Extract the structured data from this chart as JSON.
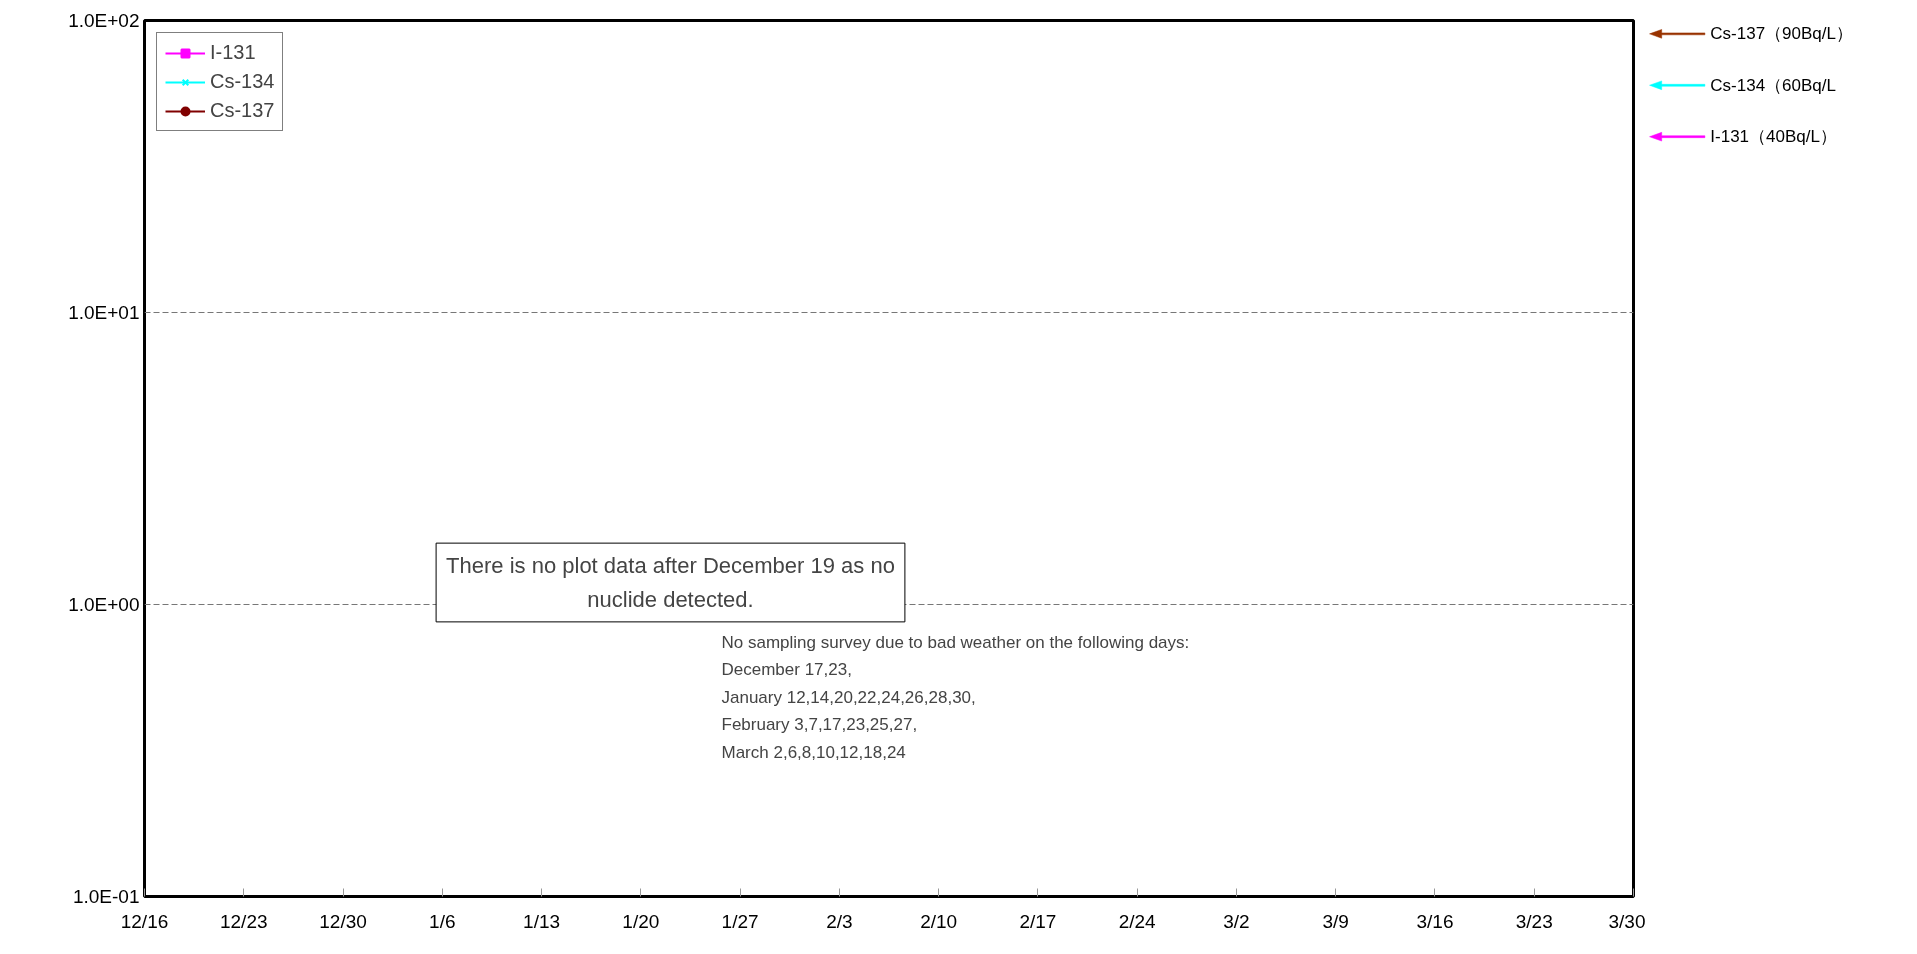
{
  "chart_data": {
    "type": "line",
    "series": [
      {
        "name": "I-131",
        "color": "#ff00ff",
        "marker": "square",
        "values": [
          null,
          null,
          null,
          null,
          null,
          null,
          null,
          null,
          null,
          null,
          null,
          null,
          null,
          null,
          null,
          null
        ]
      },
      {
        "name": "Cs-134",
        "color": "#00ffff",
        "marker": "cross",
        "values": [
          null,
          null,
          null,
          null,
          null,
          null,
          null,
          null,
          null,
          null,
          null,
          null,
          null,
          null,
          null,
          null
        ]
      },
      {
        "name": "Cs-137",
        "color": "#800000",
        "marker": "circle",
        "values": [
          null,
          null,
          null,
          null,
          null,
          null,
          null,
          null,
          null,
          null,
          null,
          null,
          null,
          null,
          null,
          null
        ]
      }
    ],
    "log": true,
    "categories": [
      "12/16",
      "12/23",
      "12/30",
      "1/6",
      "1/13",
      "1/20",
      "1/27",
      "2/3",
      "2/10",
      "2/17",
      "2/24",
      "3/2",
      "3/9",
      "3/16",
      "3/23",
      "3/30"
    ],
    "ylim": [
      0.1,
      100
    ],
    "yticks": [
      {
        "value": 0.1,
        "label": "1.0E-01"
      },
      {
        "value": 1,
        "label": "1.0E+00"
      },
      {
        "value": 10,
        "label": "1.0E+01"
      },
      {
        "value": 100,
        "label": "1.0E+02"
      }
    ],
    "grid": "y",
    "legend": "top left",
    "ref_lines": [
      {
        "axis": "y",
        "value": 90,
        "label": "Cs-137（90Bq/L）",
        "color": "#993300"
      },
      {
        "axis": "y",
        "value": 60,
        "label": "Cs-134（60Bq/L",
        "color": "#00ffff"
      },
      {
        "axis": "y",
        "value": 40,
        "label": "I-131（40Bq/L）",
        "color": "#ff00ff"
      }
    ],
    "annotations": [
      "There is no plot data after December 19 as no\nnuclide detected.",
      "No sampling survey due to bad weather on the following days:\nDecember 17,23,\nJanuary 12,14,20,22,24,26,28,30,\nFebruary 3,7,17,23,25,27,\nMarch 2,6,8,10,12,18,24"
    ]
  }
}
